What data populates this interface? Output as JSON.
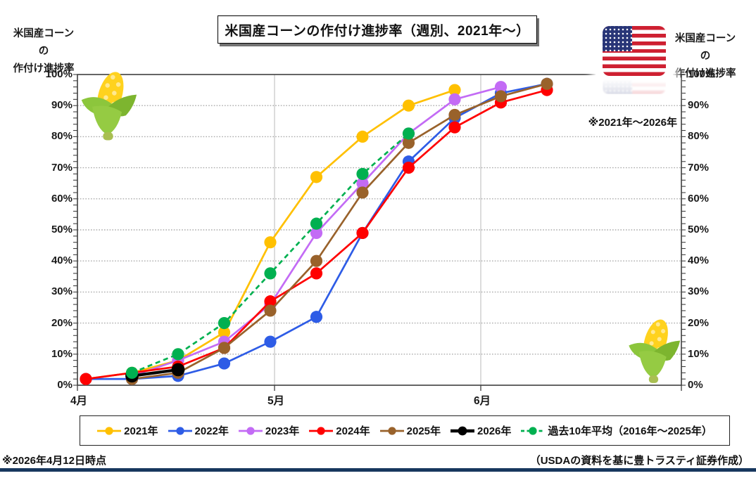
{
  "header": {
    "title": "米国産コーンの作付け進捗率（週別、2021年～）"
  },
  "axis_titles": {
    "left": [
      "米国産コーンの",
      "作付け進捗率"
    ],
    "right": [
      "米国産コーンの",
      "作付け進捗率"
    ]
  },
  "annotation": "※2021年～2026年",
  "footer": {
    "left_note": "※2026年4月12日時点",
    "right_credit": "（USDAの資料を基に豊トラスティ証券作成）"
  },
  "icons": {
    "flag": "us-flag-icon",
    "corn": "corn-icon"
  },
  "colors": {
    "divider": "#17375E",
    "grid_dotted": "#ABABAB",
    "grid_month": "#C9C9C9",
    "axis": "#3f3f3f"
  },
  "chart_data": {
    "type": "line",
    "title": "米国産コーンの作付け進捗率（週別、2021年～）",
    "x_tick_labels": [
      "4月",
      "5月",
      "6月"
    ],
    "y_tick_labels": [
      "100%",
      "90%",
      "80%",
      "70%",
      "60%",
      "50%",
      "40%",
      "30%",
      "20%",
      "10%",
      "0%"
    ],
    "ylim": [
      0,
      100
    ],
    "grid": true,
    "legend_position": "bottom",
    "weekly_slots": 11,
    "series": [
      {
        "name": "2021年",
        "color": "#FFC000",
        "dashed": false,
        "bold": false,
        "values": [
          2,
          4,
          8,
          17,
          46,
          67,
          80,
          90,
          95,
          null,
          null
        ]
      },
      {
        "name": "2022年",
        "color": "#2E5CE6",
        "dashed": false,
        "bold": false,
        "values": [
          2,
          2,
          3,
          7,
          14,
          22,
          49,
          72,
          86,
          94,
          97
        ]
      },
      {
        "name": "2023年",
        "color": "#C36BF5",
        "dashed": false,
        "bold": false,
        "values": [
          null,
          3,
          8,
          14,
          26,
          49,
          65,
          81,
          92,
          96,
          null
        ]
      },
      {
        "name": "2024年",
        "color": "#FF0000",
        "dashed": false,
        "bold": false,
        "values": [
          2,
          null,
          6,
          12,
          27,
          36,
          49,
          70,
          83,
          91,
          95
        ]
      },
      {
        "name": "2025年",
        "color": "#99622B",
        "dashed": false,
        "bold": false,
        "values": [
          null,
          2,
          4,
          12,
          24,
          40,
          62,
          78,
          87,
          93,
          97
        ]
      },
      {
        "name": "2026年",
        "color": "#000000",
        "dashed": false,
        "bold": true,
        "values": [
          null,
          3,
          5,
          null,
          null,
          null,
          null,
          null,
          null,
          null,
          null
        ]
      },
      {
        "name": "過去10年平均（2016年～2025年）",
        "color": "#00B050",
        "dashed": true,
        "bold": false,
        "values": [
          null,
          4,
          10,
          20,
          36,
          52,
          68,
          81,
          null,
          null,
          null
        ]
      }
    ],
    "annotation": "※2021年～2026年"
  }
}
